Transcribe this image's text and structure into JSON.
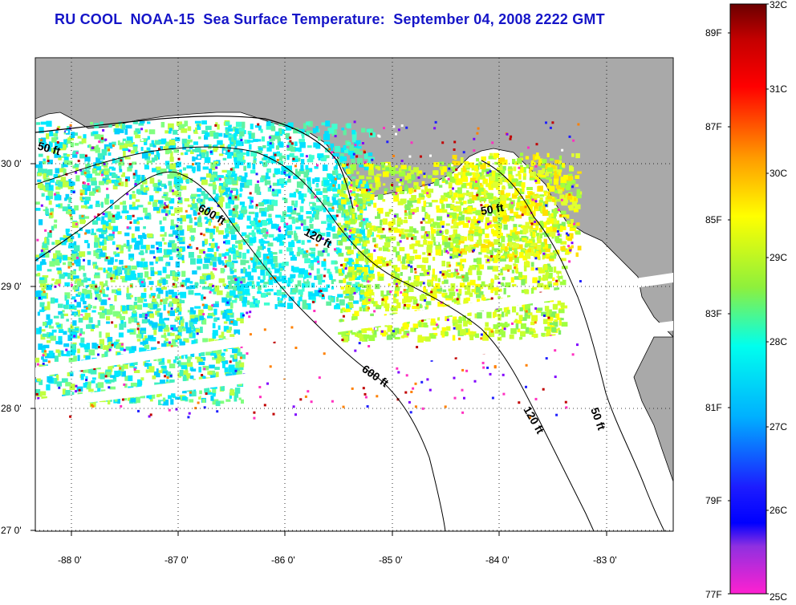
{
  "title": "RU COOL  NOAA-15  Sea Surface Temperature:  September 04, 2008 2222 GMT",
  "map": {
    "lat_labels": [
      "30 0'",
      "29 0'",
      "28 0'",
      "27 0'"
    ],
    "lon_labels": [
      "-88 0'",
      "-87 0'",
      "-86 0'",
      "-85 0'",
      "-84 0'",
      "-83 0'"
    ],
    "contour_labels": {
      "c50_west": "50 ft",
      "c600_north": "600 ft",
      "c120_north": "120 ft",
      "c50_east": "50 ft",
      "c600_south": "600 ft",
      "c120_south": "120 ft",
      "c50_south": "50 ft"
    }
  },
  "colorbar": {
    "celsius_labels": [
      "32C",
      "31C",
      "30C",
      "29C",
      "28C",
      "27C",
      "26C",
      "25C"
    ],
    "fahrenheit_labels": [
      "89F",
      "87F",
      "85F",
      "83F",
      "81F",
      "79F",
      "77F"
    ]
  },
  "colors": {
    "title": "#1515c8",
    "land": "#a9a9a9",
    "no_data": "#ffffff"
  }
}
